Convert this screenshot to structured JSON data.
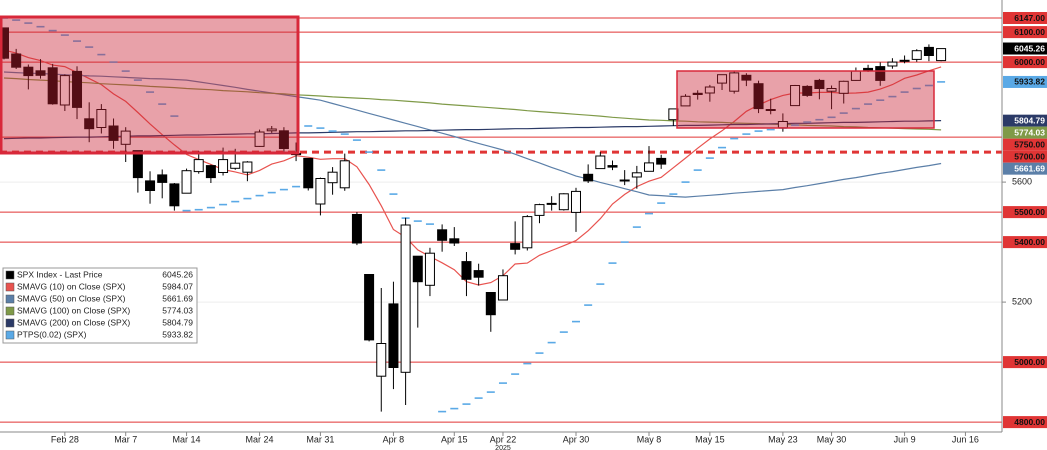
{
  "chart_data": {
    "type": "candlestick",
    "categories": [
      null,
      null,
      null,
      null,
      null,
      "Feb 28",
      null,
      null,
      null,
      null,
      "Mar 7",
      null,
      null,
      null,
      null,
      "Mar 14",
      null,
      null,
      null,
      null,
      null,
      "Mar 24",
      null,
      null,
      null,
      null,
      "Mar 31",
      null,
      null,
      null,
      null,
      null,
      "Apr 8",
      null,
      null,
      null,
      null,
      "Apr 15",
      null,
      null,
      null,
      "Apr 22",
      null,
      null,
      null,
      null,
      null,
      "Apr 30",
      null,
      null,
      null,
      null,
      null,
      "May 8",
      null,
      null,
      null,
      null,
      "May 15",
      null,
      null,
      null,
      null,
      null,
      "May 23",
      null,
      null,
      null,
      "May 30",
      null,
      null,
      null,
      null,
      null,
      "Jun 9",
      null,
      null,
      null,
      null,
      "Jun 16"
    ],
    "year_label": "2025",
    "candles": {
      "name": "SPX Index - Last Price",
      "color": "#000000",
      "last": 6045.26,
      "open": [
        6114,
        6027,
        5983,
        5971,
        5981,
        5857,
        5969,
        5811,
        5782,
        5787,
        5726,
        5705,
        5604,
        5624,
        5594,
        5563,
        5635,
        5655,
        5632,
        5646,
        5633,
        5719,
        5771,
        5771,
        5695,
        5679,
        5527,
        5598,
        5581,
        5492,
        5292,
        4953,
        5194,
        4966,
        5353,
        5256,
        5441,
        5411,
        5335,
        5305,
        5232,
        5207,
        5395,
        5381,
        5489,
        5529,
        5508,
        5499,
        5626,
        5645,
        5655,
        5605,
        5617,
        5636,
        5679,
        5808,
        5854,
        5896,
        5897,
        5930,
        5903,
        5956,
        5928,
        5840,
        5781,
        5855,
        5919,
        5939,
        5903,
        5896,
        5939,
        5979,
        5985,
        5987,
        6005,
        6009,
        6049,
        6005,
        null,
        null
      ],
      "high": [
        6114,
        6044,
        5992,
        6010,
        5994,
        5959,
        5986,
        5866,
        5860,
        5812,
        5783,
        5705,
        5636,
        5642,
        5597,
        5645,
        5704,
        5658,
        5715,
        5711,
        5670,
        5775,
        5787,
        5783,
        5732,
        5679,
        5615,
        5650,
        5695,
        5500,
        5292,
        5247,
        5268,
        5481,
        5353,
        5381,
        5459,
        5450,
        5367,
        5328,
        5232,
        5309,
        5469,
        5490,
        5528,
        5553,
        5563,
        5581,
        5659,
        5700,
        5672,
        5640,
        5654,
        5720,
        5691,
        5845,
        5893,
        5906,
        5924,
        5958,
        5969,
        5963,
        5938,
        5878,
        5829,
        5924,
        5923,
        5944,
        5922,
        5938,
        5982,
        5991,
        5999,
        6013,
        6022,
        6043,
        6059,
        6045,
        null,
        null
      ],
      "low": [
        6009,
        5977,
        5909,
        5945,
        5858,
        5837,
        5810,
        5733,
        5762,
        5711,
        5667,
        5565,
        5528,
        5546,
        5505,
        5563,
        5628,
        5597,
        5622,
        5641,
        5603,
        5718,
        5764,
        5695,
        5670,
        5572,
        5489,
        5558,
        5571,
        5390,
        5069,
        4835,
        4910,
        4857,
        5115,
        5220,
        5368,
        5387,
        5220,
        5255,
        5101,
        5207,
        5359,
        5372,
        5463,
        5505,
        5505,
        5434,
        5597,
        5645,
        5640,
        5590,
        5578,
        5636,
        5644,
        5787,
        5854,
        5875,
        5868,
        5907,
        5895,
        5920,
        5830,
        5826,
        5768,
        5854,
        5884,
        5876,
        5843,
        5862,
        5938,
        5967,
        5921,
        5978,
        5996,
        6001,
        6003,
        6003,
        null,
        null
      ],
      "close": [
        6013,
        5983,
        5955,
        5956,
        5861,
        5955,
        5849,
        5778,
        5842,
        5739,
        5770,
        5615,
        5572,
        5599,
        5521,
        5638,
        5675,
        5615,
        5675,
        5663,
        5667,
        5767,
        5777,
        5712,
        5693,
        5581,
        5612,
        5633,
        5671,
        5397,
        5074,
        5062,
        4982,
        5457,
        5268,
        5363,
        5406,
        5397,
        5276,
        5283,
        5158,
        5288,
        5376,
        5485,
        5525,
        5529,
        5561,
        5569,
        5604,
        5687,
        5650,
        5607,
        5631,
        5664,
        5660,
        5844,
        5886,
        5892,
        5917,
        5958,
        5964,
        5940,
        5845,
        5842,
        5802,
        5922,
        5889,
        5912,
        5912,
        5936,
        5970,
        5971,
        5939,
        6000,
        6006,
        6038,
        6022,
        6045,
        null,
        null
      ]
    },
    "series": [
      {
        "name": "SMAVG (10) on Close (SPX)",
        "color": "#e8534f",
        "last": 5984.07,
        "values": [
          6040,
          6030,
          6015,
          6005,
          5990,
          5985,
          5965,
          5945,
          5925,
          5894,
          5869,
          5832,
          5794,
          5758,
          5724,
          5692,
          5675,
          5659,
          5642,
          5634,
          5624,
          5639,
          5660,
          5671,
          5688,
          5683,
          5676,
          5678,
          5678,
          5651,
          5592,
          5521,
          5442,
          5416,
          5374,
          5352,
          5331,
          5308,
          5268,
          5257,
          5265,
          5288,
          5327,
          5330,
          5356,
          5372,
          5388,
          5405,
          5438,
          5478,
          5527,
          5559,
          5585,
          5603,
          5616,
          5648,
          5680,
          5713,
          5744,
          5771,
          5802,
          5836,
          5857,
          5875,
          5889,
          5897,
          5897,
          5899,
          5899,
          5896,
          5897,
          5900,
          5910,
          5925,
          5946,
          5957,
          5971,
          5984,
          null,
          null
        ]
      },
      {
        "name": "SMAVG (50) on Close (SPX)",
        "color": "#5b7fa8",
        "last": 5661.69,
        "values": [
          5967,
          5965,
          5963,
          5962,
          5960,
          5958,
          5956,
          5954,
          5953,
          5951,
          5949,
          5947,
          5945,
          5944,
          5942,
          5940,
          5934,
          5928,
          5922,
          5916,
          5909,
          5903,
          5897,
          5891,
          5885,
          5879,
          5873,
          5862,
          5851,
          5840,
          5829,
          5818,
          5807,
          5796,
          5785,
          5774,
          5763,
          5752,
          5740,
          5729,
          5718,
          5707,
          5693,
          5678,
          5664,
          5649,
          5635,
          5620,
          5610,
          5599,
          5589,
          5578,
          5568,
          5557,
          5555,
          5552,
          5550,
          5553,
          5556,
          5559,
          5563,
          5566,
          5569,
          5572,
          5575,
          5582,
          5588,
          5595,
          5602,
          5609,
          5615,
          5622,
          5629,
          5635,
          5642,
          5649,
          5655,
          5662,
          null,
          null
        ]
      },
      {
        "name": "SMAVG (100) on Close (SPX)",
        "color": "#7f9a48",
        "last": 5774.03,
        "values": [
          5947,
          5945,
          5942,
          5940,
          5938,
          5935,
          5933,
          5931,
          5928,
          5926,
          5924,
          5922,
          5919,
          5917,
          5915,
          5912,
          5910,
          5908,
          5905,
          5903,
          5901,
          5898,
          5896,
          5894,
          5891,
          5889,
          5887,
          5884,
          5882,
          5880,
          5878,
          5875,
          5873,
          5870,
          5867,
          5864,
          5860,
          5857,
          5854,
          5851,
          5848,
          5845,
          5842,
          5838,
          5835,
          5832,
          5829,
          5826,
          5823,
          5820,
          5816,
          5813,
          5810,
          5807,
          5806,
          5804,
          5803,
          5801,
          5800,
          5799,
          5797,
          5796,
          5795,
          5793,
          5792,
          5791,
          5789,
          5788,
          5787,
          5785,
          5784,
          5782,
          5781,
          5780,
          5778,
          5777,
          5776,
          5774,
          null,
          null
        ]
      },
      {
        "name": "SMAVG (200) on Close (SPX)",
        "color": "#2b3a67",
        "last": 5804.79,
        "values": [
          5745,
          5746,
          5747,
          5747,
          5748,
          5749,
          5750,
          5750,
          5751,
          5752,
          5753,
          5754,
          5754,
          5755,
          5756,
          5757,
          5757,
          5758,
          5759,
          5760,
          5761,
          5761,
          5762,
          5763,
          5764,
          5764,
          5765,
          5766,
          5767,
          5768,
          5768,
          5769,
          5770,
          5771,
          5771,
          5772,
          5773,
          5774,
          5775,
          5775,
          5776,
          5777,
          5778,
          5778,
          5779,
          5780,
          5781,
          5782,
          5782,
          5783,
          5784,
          5785,
          5785,
          5786,
          5787,
          5788,
          5789,
          5789,
          5790,
          5791,
          5792,
          5792,
          5793,
          5794,
          5795,
          5796,
          5796,
          5797,
          5798,
          5799,
          5799,
          5800,
          5801,
          5802,
          5803,
          5803,
          5804,
          5805,
          null,
          null
        ]
      },
      {
        "name": "PTPS(0.02) (SPX)",
        "color": "#5aa9e6",
        "style": "dash",
        "last": 5933.82,
        "values": [
          6147,
          6140,
          6130,
          6118,
          6105,
          6090,
          6070,
          6050,
          6025,
          6000,
          5970,
          5940,
          5900,
          5860,
          5820,
          5505,
          5508,
          5515,
          5525,
          5535,
          5545,
          5555,
          5565,
          5575,
          5585,
          5787,
          5780,
          5770,
          5760,
          5740,
          5700,
          5640,
          5560,
          5480,
          5470,
          5460,
          4835,
          4845,
          4860,
          4880,
          4900,
          4930,
          4960,
          4995,
          5030,
          5065,
          5100,
          5135,
          5190,
          5260,
          5330,
          5400,
          5450,
          5495,
          5530,
          5560,
          5600,
          5640,
          5680,
          5715,
          5745,
          5760,
          5770,
          5775,
          5780,
          5790,
          5800,
          5808,
          5816,
          5830,
          5845,
          5860,
          5873,
          5885,
          5900,
          5912,
          5922,
          5934,
          null,
          null
        ]
      }
    ],
    "ylim": [
      4767,
      6207
    ],
    "yticks": [
      5200,
      5600
    ],
    "levels": [
      {
        "value": 6147,
        "label": "6147.00"
      },
      {
        "value": 6100,
        "label": "6100.00"
      },
      {
        "value": 6000,
        "label": "6000.00"
      },
      {
        "value": 5750,
        "label": "5750.00"
      },
      {
        "value": 5700,
        "label": "5700.00",
        "dashed": true
      },
      {
        "value": 5500,
        "label": "5500.00"
      },
      {
        "value": 5400,
        "label": "5400.00"
      },
      {
        "value": 5000,
        "label": "5000.00"
      },
      {
        "value": 4800,
        "label": "4800.00"
      }
    ],
    "level_color": "#e03535"
  }
}
